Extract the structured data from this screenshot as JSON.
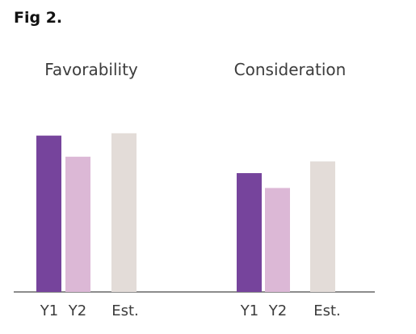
{
  "figure": {
    "label": "Fig 2."
  },
  "chart_data": {
    "type": "bar",
    "groups": [
      "Favorability",
      "Consideration"
    ],
    "categories": [
      "Y1",
      "Y2",
      "Est."
    ],
    "series": [
      {
        "group": "Favorability",
        "values": [
          100,
          86.5,
          101.5
        ]
      },
      {
        "group": "Consideration",
        "values": [
          76,
          66.5,
          83.5
        ]
      }
    ],
    "colors": {
      "Y1": "#76449c",
      "Y2": "#dcb8d6",
      "Est.": "#e3dcd8",
      "axis": "#666666"
    },
    "ylim": [
      0,
      105
    ],
    "grid": false,
    "y_axis_labels_shown": false
  }
}
